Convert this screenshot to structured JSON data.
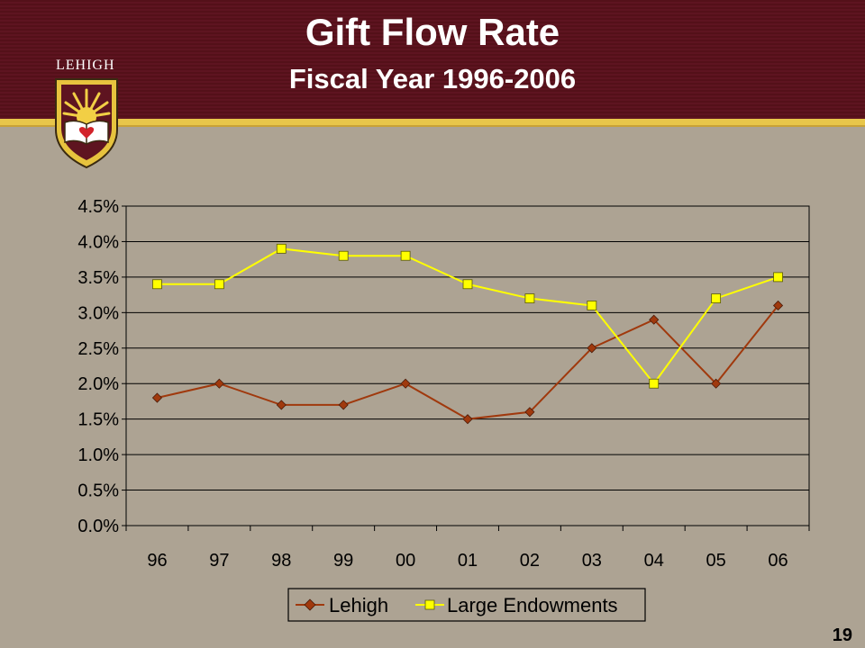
{
  "slide": {
    "title": "Gift Flow Rate",
    "subtitle": "Fiscal Year 1996-2006",
    "logo_text": "LEHIGH",
    "page_number": "19"
  },
  "colors": {
    "lehigh": "#a0390d",
    "large_endowments": "#ffff00"
  },
  "chart_data": {
    "type": "line",
    "title": "",
    "xlabel": "",
    "ylabel": "",
    "categories": [
      "96",
      "97",
      "98",
      "99",
      "00",
      "01",
      "02",
      "03",
      "04",
      "05",
      "06"
    ],
    "ylim": [
      0,
      4.5
    ],
    "y_ticks": [
      {
        "value": 0,
        "label": "0.0%"
      },
      {
        "value": 0.5,
        "label": "0.5%"
      },
      {
        "value": 1.0,
        "label": "1.0%"
      },
      {
        "value": 1.5,
        "label": "1.5%"
      },
      {
        "value": 2.0,
        "label": "2.0%"
      },
      {
        "value": 2.5,
        "label": "2.5%"
      },
      {
        "value": 3.0,
        "label": "3.0%"
      },
      {
        "value": 3.5,
        "label": "3.5%"
      },
      {
        "value": 4.0,
        "label": "4.0%"
      },
      {
        "value": 4.5,
        "label": "4.5%"
      }
    ],
    "grid": true,
    "legend_position": "bottom",
    "series": [
      {
        "name": "Lehigh",
        "marker": "diamond",
        "values": [
          1.8,
          2.0,
          1.7,
          1.7,
          2.0,
          1.5,
          1.6,
          2.5,
          2.9,
          2.0,
          3.1
        ]
      },
      {
        "name": "Large Endowments",
        "marker": "square",
        "values": [
          3.4,
          3.4,
          3.9,
          3.8,
          3.8,
          3.4,
          3.2,
          3.1,
          2.0,
          3.2,
          3.5
        ]
      }
    ]
  }
}
